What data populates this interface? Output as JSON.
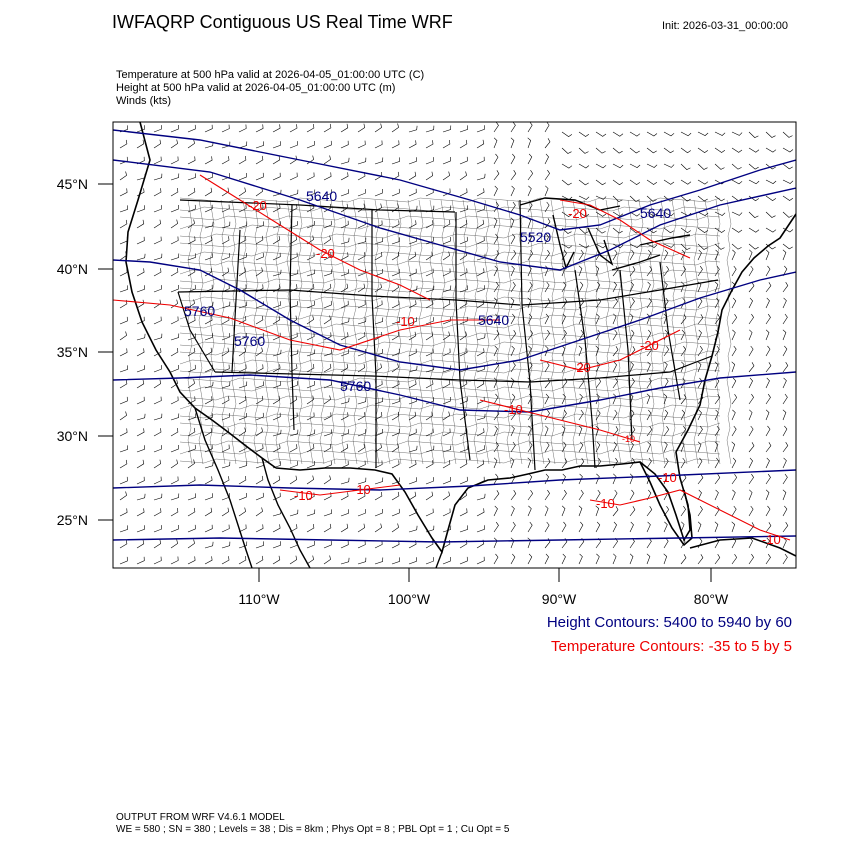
{
  "header": {
    "title": "IWFAQRP Contiguous US Real Time WRF",
    "init": "Init: 2026-03-31_00:00:00"
  },
  "fields": [
    "Temperature at 500 hPa valid at 2026-04-05_01:00:00 UTC   (C)",
    "Height at 500 hPa valid at 2026-04-05_01:00:00 UTC   (m)",
    "Winds   (kts)"
  ],
  "map": {
    "lat_labels": [
      "45°N",
      "40°N",
      "35°N",
      "30°N",
      "25°N"
    ],
    "lon_labels": [
      "110°W",
      "100°W",
      "90°W",
      "80°W"
    ],
    "height_contour_labels": [
      "5640",
      "5520",
      "5640",
      "5640",
      "5760",
      "5760",
      "5760"
    ],
    "temp_contour_labels": [
      "-20",
      "-20",
      "-20",
      "-20",
      "-20",
      "-10",
      "-10",
      "-10",
      "-10",
      "-10",
      "-10",
      "-10",
      "-10"
    ],
    "colors": {
      "height": "#000080",
      "temperature": "#ee0000",
      "boundaries": "#000000",
      "wind": "#000000"
    }
  },
  "legend": {
    "height": "Height Contours: 5400 to 5940 by 60",
    "temperature": "Temperature Contours: -35 to 5 by 5"
  },
  "footer": {
    "line1": "OUTPUT FROM WRF V4.6.1 MODEL",
    "line2": "WE = 580 ; SN = 380 ; Levels = 38 ; Dis = 8km ; Phys Opt = 8 ; PBL Opt = 1 ; Cu Opt = 5"
  }
}
